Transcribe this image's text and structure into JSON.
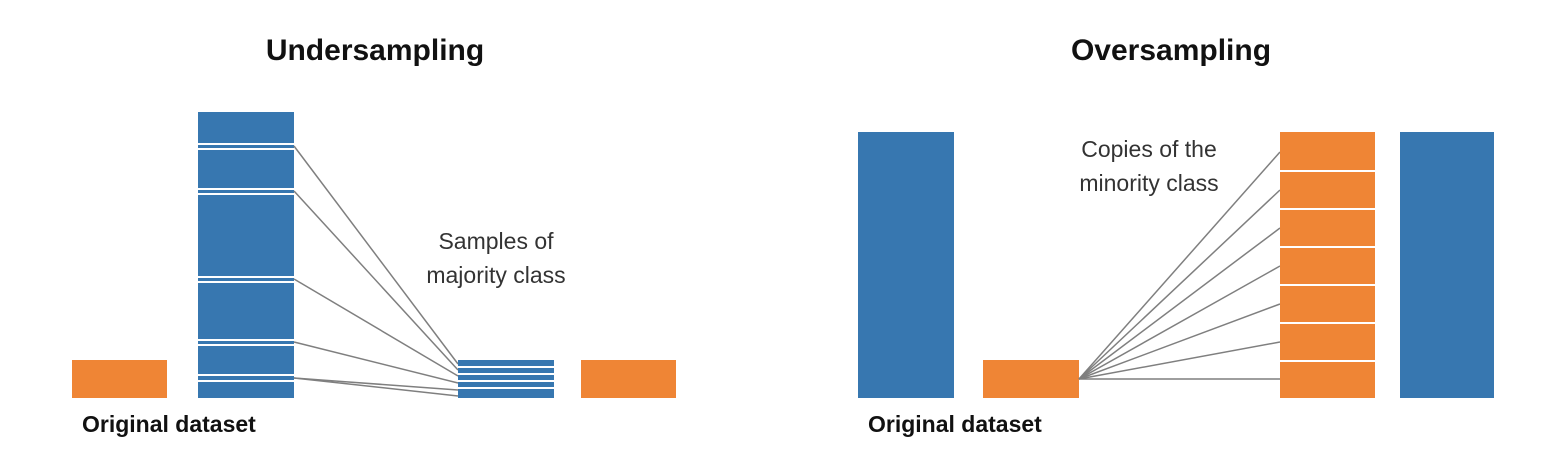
{
  "colors": {
    "majority": "#3777b0",
    "minority": "#ef8535",
    "line": "#7f7f7f",
    "divider": "#ffffff"
  },
  "undersampling": {
    "title": "Undersampling",
    "caption": "Original dataset",
    "annotation_line1": "Samples of",
    "annotation_line2": "majority class"
  },
  "oversampling": {
    "title": "Oversampling",
    "caption": "Original dataset",
    "annotation_line1": "Copies of the",
    "annotation_line2": "minority class"
  }
}
